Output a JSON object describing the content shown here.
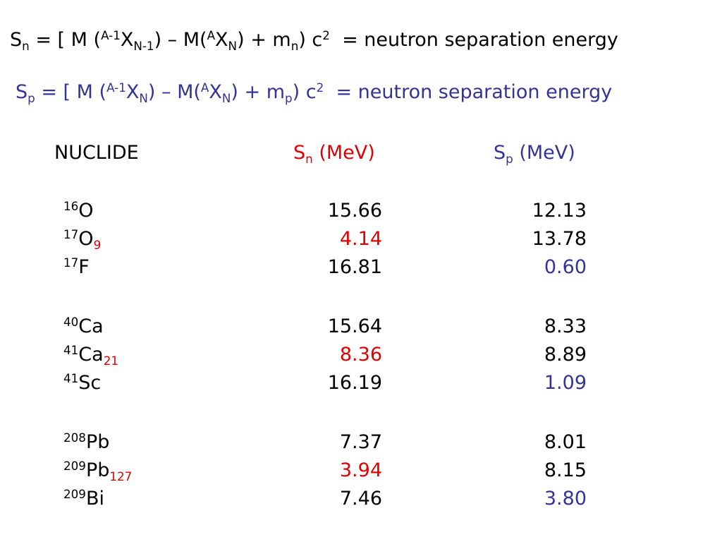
{
  "equations": {
    "sn": {
      "symbol": "S",
      "sub": "n",
      "t1": " = [ M (",
      "sup_a1": "A-1",
      "x1": "X",
      "sub1": "N-1",
      "t2": ") – M(",
      "sup_a2": "A",
      "x2": "X",
      "sub2": "N",
      "t3": ") + m",
      "sub_m": "n",
      "t4": ") c",
      "sup_c": "2",
      "t5": "  = neutron separation energy"
    },
    "sp": {
      "symbol": "S",
      "sub": "p",
      "t1": " = [ M (",
      "sup_a1": "A-1",
      "x1": "X",
      "sub1": "N",
      "t2": ") – M(",
      "sup_a2": "A",
      "x2": "X",
      "sub2": "N",
      "t3": ") + m",
      "sub_m": "p",
      "t4": ") c",
      "sup_c": "2",
      "t5": "  = neutron separation energy"
    }
  },
  "headers": {
    "nuclide": "NUCLIDE",
    "sn_symbol": "S",
    "sn_sub": "n",
    "sn_unit": " (MeV)",
    "sp_symbol": "S",
    "sp_sub": "p",
    "sp_unit": " (MeV)"
  },
  "rows": [
    {
      "mass": "16",
      "element": "O",
      "neutrons": "",
      "sn": "15.66",
      "sp": "12.13"
    },
    {
      "mass": "17",
      "element": "O",
      "neutrons": "9",
      "sn": "4.14",
      "sp": "13.78"
    },
    {
      "mass": "17",
      "element": "F",
      "neutrons": "",
      "sn": "16.81",
      "sp": "0.60"
    },
    {
      "mass": "40",
      "element": "Ca",
      "neutrons": "",
      "sn": "15.64",
      "sp": "8.33"
    },
    {
      "mass": "41",
      "element": "Ca",
      "neutrons": "21",
      "sn": "8.36",
      "sp": "8.89"
    },
    {
      "mass": "41",
      "element": "Sc",
      "neutrons": "",
      "sn": "16.19",
      "sp": "1.09"
    },
    {
      "mass": "208",
      "element": "Pb",
      "neutrons": "",
      "sn": "7.37",
      "sp": "8.01"
    },
    {
      "mass": "209",
      "element": "Pb",
      "neutrons": "127",
      "sn": "3.94",
      "sp": "8.15"
    },
    {
      "mass": "209",
      "element": "Bi",
      "neutrons": "",
      "sn": "7.46",
      "sp": "3.80"
    }
  ],
  "colors": {
    "text": "#000000",
    "highlight_sn": "#e00000",
    "highlight_sp": "#333399"
  }
}
